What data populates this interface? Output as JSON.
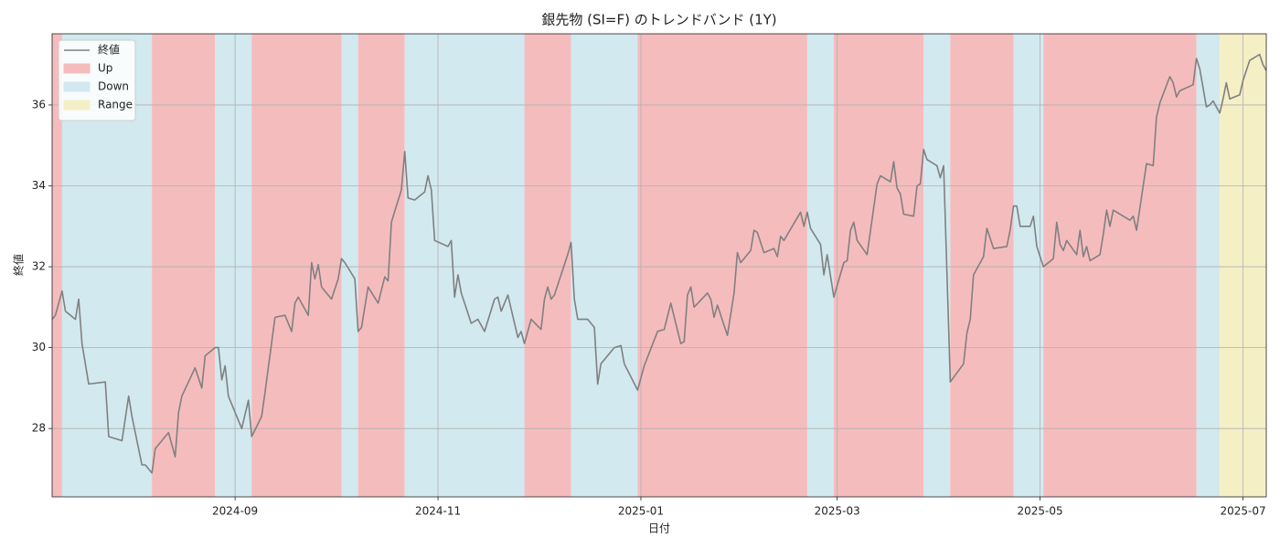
{
  "chart_data": {
    "type": "line",
    "title": "銀先物 (SI=F) のトレンドバンド (1Y)",
    "xlabel": "日付",
    "ylabel": "終値",
    "grid": true,
    "legend": "upper left",
    "xlim": [
      "2024-07-08",
      "2025-07-08"
    ],
    "ylim": [
      26.31,
      37.76
    ],
    "yticks": [
      28,
      30,
      32,
      34,
      36
    ],
    "xticks": [
      {
        "value": "2024-09-01",
        "label": "2024-09"
      },
      {
        "value": "2024-11-01",
        "label": "2024-11"
      },
      {
        "value": "2025-01-01",
        "label": "2025-01"
      },
      {
        "value": "2025-03-01",
        "label": "2025-03"
      },
      {
        "value": "2025-05-01",
        "label": "2025-05"
      },
      {
        "value": "2025-07-01",
        "label": "2025-07"
      }
    ],
    "regimes": [
      {
        "name": "Up",
        "color": "#f5bcbe"
      },
      {
        "name": "Down",
        "color": "#d2e9ef"
      },
      {
        "name": "Range",
        "color": "#f5efc6"
      }
    ],
    "bands": [
      {
        "start": "2024-07-08",
        "end": "2024-07-11",
        "regime": "Up"
      },
      {
        "start": "2024-07-11",
        "end": "2024-08-07",
        "regime": "Down"
      },
      {
        "start": "2024-08-07",
        "end": "2024-08-26",
        "regime": "Up"
      },
      {
        "start": "2024-08-26",
        "end": "2024-09-06",
        "regime": "Down"
      },
      {
        "start": "2024-09-06",
        "end": "2024-10-03",
        "regime": "Up"
      },
      {
        "start": "2024-10-03",
        "end": "2024-10-08",
        "regime": "Down"
      },
      {
        "start": "2024-10-08",
        "end": "2024-10-22",
        "regime": "Up"
      },
      {
        "start": "2024-10-22",
        "end": "2024-11-27",
        "regime": "Down"
      },
      {
        "start": "2024-11-27",
        "end": "2024-12-11",
        "regime": "Up"
      },
      {
        "start": "2024-12-11",
        "end": "2024-12-31",
        "regime": "Down"
      },
      {
        "start": "2024-12-31",
        "end": "2025-02-20",
        "regime": "Up"
      },
      {
        "start": "2025-02-20",
        "end": "2025-02-28",
        "regime": "Down"
      },
      {
        "start": "2025-02-28",
        "end": "2025-03-27",
        "regime": "Up"
      },
      {
        "start": "2025-03-27",
        "end": "2025-04-04",
        "regime": "Down"
      },
      {
        "start": "2025-04-04",
        "end": "2025-04-23",
        "regime": "Up"
      },
      {
        "start": "2025-04-23",
        "end": "2025-05-02",
        "regime": "Down"
      },
      {
        "start": "2025-05-02",
        "end": "2025-06-17",
        "regime": "Up"
      },
      {
        "start": "2025-06-17",
        "end": "2025-06-24",
        "regime": "Down"
      },
      {
        "start": "2025-06-24",
        "end": "2025-07-08",
        "regime": "Range"
      }
    ],
    "x": [
      "2024-07-08",
      "2024-07-09",
      "2024-07-11",
      "2024-07-12",
      "2024-07-15",
      "2024-07-16",
      "2024-07-17",
      "2024-07-19",
      "2024-07-24",
      "2024-07-25",
      "2024-07-29",
      "2024-07-31",
      "2024-08-01",
      "2024-08-04",
      "2024-08-05",
      "2024-08-07",
      "2024-08-08",
      "2024-08-12",
      "2024-08-14",
      "2024-08-15",
      "2024-08-16",
      "2024-08-20",
      "2024-08-22",
      "2024-08-23",
      "2024-08-26",
      "2024-08-27",
      "2024-08-28",
      "2024-08-29",
      "2024-08-30",
      "2024-09-03",
      "2024-09-05",
      "2024-09-06",
      "2024-09-09",
      "2024-09-10",
      "2024-09-13",
      "2024-09-16",
      "2024-09-18",
      "2024-09-19",
      "2024-09-20",
      "2024-09-23",
      "2024-09-24",
      "2024-09-25",
      "2024-09-26",
      "2024-09-27",
      "2024-09-30",
      "2024-10-02",
      "2024-10-03",
      "2024-10-04",
      "2024-10-07",
      "2024-10-08",
      "2024-10-09",
      "2024-10-11",
      "2024-10-14",
      "2024-10-16",
      "2024-10-17",
      "2024-10-18",
      "2024-10-21",
      "2024-10-22",
      "2024-10-23",
      "2024-10-25",
      "2024-10-28",
      "2024-10-29",
      "2024-10-30",
      "2024-10-31",
      "2024-11-04",
      "2024-11-05",
      "2024-11-06",
      "2024-11-07",
      "2024-11-08",
      "2024-11-11",
      "2024-11-13",
      "2024-11-15",
      "2024-11-18",
      "2024-11-19",
      "2024-11-20",
      "2024-11-22",
      "2024-11-25",
      "2024-11-26",
      "2024-11-27",
      "2024-11-29",
      "2024-12-02",
      "2024-12-03",
      "2024-12-04",
      "2024-12-05",
      "2024-12-06",
      "2024-12-10",
      "2024-12-11",
      "2024-12-12",
      "2024-12-13",
      "2024-12-16",
      "2024-12-18",
      "2024-12-19",
      "2024-12-20",
      "2024-12-24",
      "2024-12-26",
      "2024-12-27",
      "2024-12-31",
      "2025-01-02",
      "2025-01-06",
      "2025-01-08",
      "2025-01-10",
      "2025-01-13",
      "2025-01-14",
      "2025-01-15",
      "2025-01-16",
      "2025-01-17",
      "2025-01-21",
      "2025-01-22",
      "2025-01-23",
      "2025-01-24",
      "2025-01-27",
      "2025-01-29",
      "2025-01-30",
      "2025-01-31",
      "2025-02-03",
      "2025-02-04",
      "2025-02-05",
      "2025-02-07",
      "2025-02-10",
      "2025-02-11",
      "2025-02-12",
      "2025-02-13",
      "2025-02-18",
      "2025-02-19",
      "2025-02-20",
      "2025-02-21",
      "2025-02-24",
      "2025-02-25",
      "2025-02-26",
      "2025-02-28",
      "2025-03-03",
      "2025-03-04",
      "2025-03-05",
      "2025-03-06",
      "2025-03-07",
      "2025-03-10",
      "2025-03-13",
      "2025-03-14",
      "2025-03-17",
      "2025-03-18",
      "2025-03-19",
      "2025-03-20",
      "2025-03-21",
      "2025-03-24",
      "2025-03-25",
      "2025-03-26",
      "2025-03-27",
      "2025-03-28",
      "2025-03-31",
      "2025-04-01",
      "2025-04-02",
      "2025-04-04",
      "2025-04-08",
      "2025-04-09",
      "2025-04-10",
      "2025-04-11",
      "2025-04-14",
      "2025-04-15",
      "2025-04-17",
      "2025-04-21",
      "2025-04-22",
      "2025-04-23",
      "2025-04-24",
      "2025-04-25",
      "2025-04-28",
      "2025-04-29",
      "2025-04-30",
      "2025-05-02",
      "2025-05-05",
      "2025-05-06",
      "2025-05-07",
      "2025-05-08",
      "2025-05-09",
      "2025-05-12",
      "2025-05-13",
      "2025-05-14",
      "2025-05-15",
      "2025-05-16",
      "2025-05-19",
      "2025-05-20",
      "2025-05-21",
      "2025-05-22",
      "2025-05-23",
      "2025-05-28",
      "2025-05-29",
      "2025-05-30",
      "2025-06-02",
      "2025-06-04",
      "2025-06-05",
      "2025-06-06",
      "2025-06-09",
      "2025-06-10",
      "2025-06-11",
      "2025-06-12",
      "2025-06-16",
      "2025-06-17",
      "2025-06-18",
      "2025-06-20",
      "2025-06-21",
      "2025-06-22",
      "2025-06-24",
      "2025-06-25",
      "2025-06-26",
      "2025-06-27",
      "2025-06-30",
      "2025-07-01",
      "2025-07-03",
      "2025-07-06",
      "2025-07-07",
      "2025-07-08"
    ],
    "series": [
      {
        "name": "終値",
        "color": "#808080",
        "values": [
          30.7,
          30.8,
          31.4,
          30.9,
          30.7,
          31.2,
          30.1,
          29.1,
          29.15,
          27.8,
          27.7,
          28.8,
          28.3,
          27.1,
          27.1,
          26.9,
          27.5,
          27.9,
          27.3,
          28.4,
          28.8,
          29.5,
          29.0,
          29.8,
          30.0,
          30.0,
          29.2,
          29.55,
          28.8,
          28.0,
          28.7,
          27.8,
          28.3,
          28.9,
          30.75,
          30.8,
          30.4,
          31.1,
          31.25,
          30.8,
          32.1,
          31.7,
          32.05,
          31.5,
          31.2,
          31.7,
          32.2,
          32.1,
          31.7,
          30.4,
          30.5,
          31.5,
          31.1,
          31.75,
          31.65,
          33.1,
          33.9,
          34.85,
          33.7,
          33.65,
          33.85,
          34.25,
          33.9,
          32.65,
          32.5,
          32.65,
          31.25,
          31.8,
          31.35,
          30.6,
          30.7,
          30.4,
          31.2,
          31.25,
          30.9,
          31.3,
          30.25,
          30.4,
          30.1,
          30.7,
          30.45,
          31.2,
          31.5,
          31.2,
          31.3,
          32.3,
          32.6,
          31.2,
          30.7,
          30.7,
          30.5,
          29.1,
          29.6,
          30.0,
          30.05,
          29.6,
          28.95,
          29.55,
          30.4,
          30.45,
          31.1,
          30.1,
          30.15,
          31.3,
          31.5,
          31.0,
          31.35,
          31.2,
          30.75,
          31.05,
          30.3,
          31.35,
          32.35,
          32.1,
          32.4,
          32.9,
          32.85,
          32.35,
          32.45,
          32.25,
          32.75,
          32.65,
          33.35,
          33.0,
          33.35,
          32.95,
          32.55,
          31.8,
          32.3,
          31.25,
          32.1,
          32.15,
          32.9,
          33.1,
          32.65,
          32.3,
          34.05,
          34.25,
          34.1,
          34.6,
          33.95,
          33.8,
          33.3,
          33.25,
          34.0,
          34.05,
          34.9,
          34.65,
          34.5,
          34.2,
          34.5,
          29.15,
          29.6,
          30.35,
          30.7,
          31.8,
          32.25,
          32.95,
          32.45,
          32.5,
          32.9,
          33.5,
          33.5,
          33.0,
          33.0,
          33.25,
          32.5,
          32.0,
          32.2,
          33.1,
          32.55,
          32.4,
          32.65,
          32.3,
          32.9,
          32.25,
          32.5,
          32.15,
          32.3,
          32.8,
          33.4,
          33.0,
          33.4,
          33.15,
          33.25,
          32.9,
          34.55,
          34.5,
          35.7,
          36.05,
          36.7,
          36.55,
          36.2,
          36.35,
          36.5,
          37.15,
          36.9,
          35.95,
          36.0,
          36.1,
          35.8,
          36.15,
          36.55,
          36.15,
          36.25,
          36.6,
          37.1,
          37.25,
          37.0,
          36.85
        ]
      }
    ]
  }
}
